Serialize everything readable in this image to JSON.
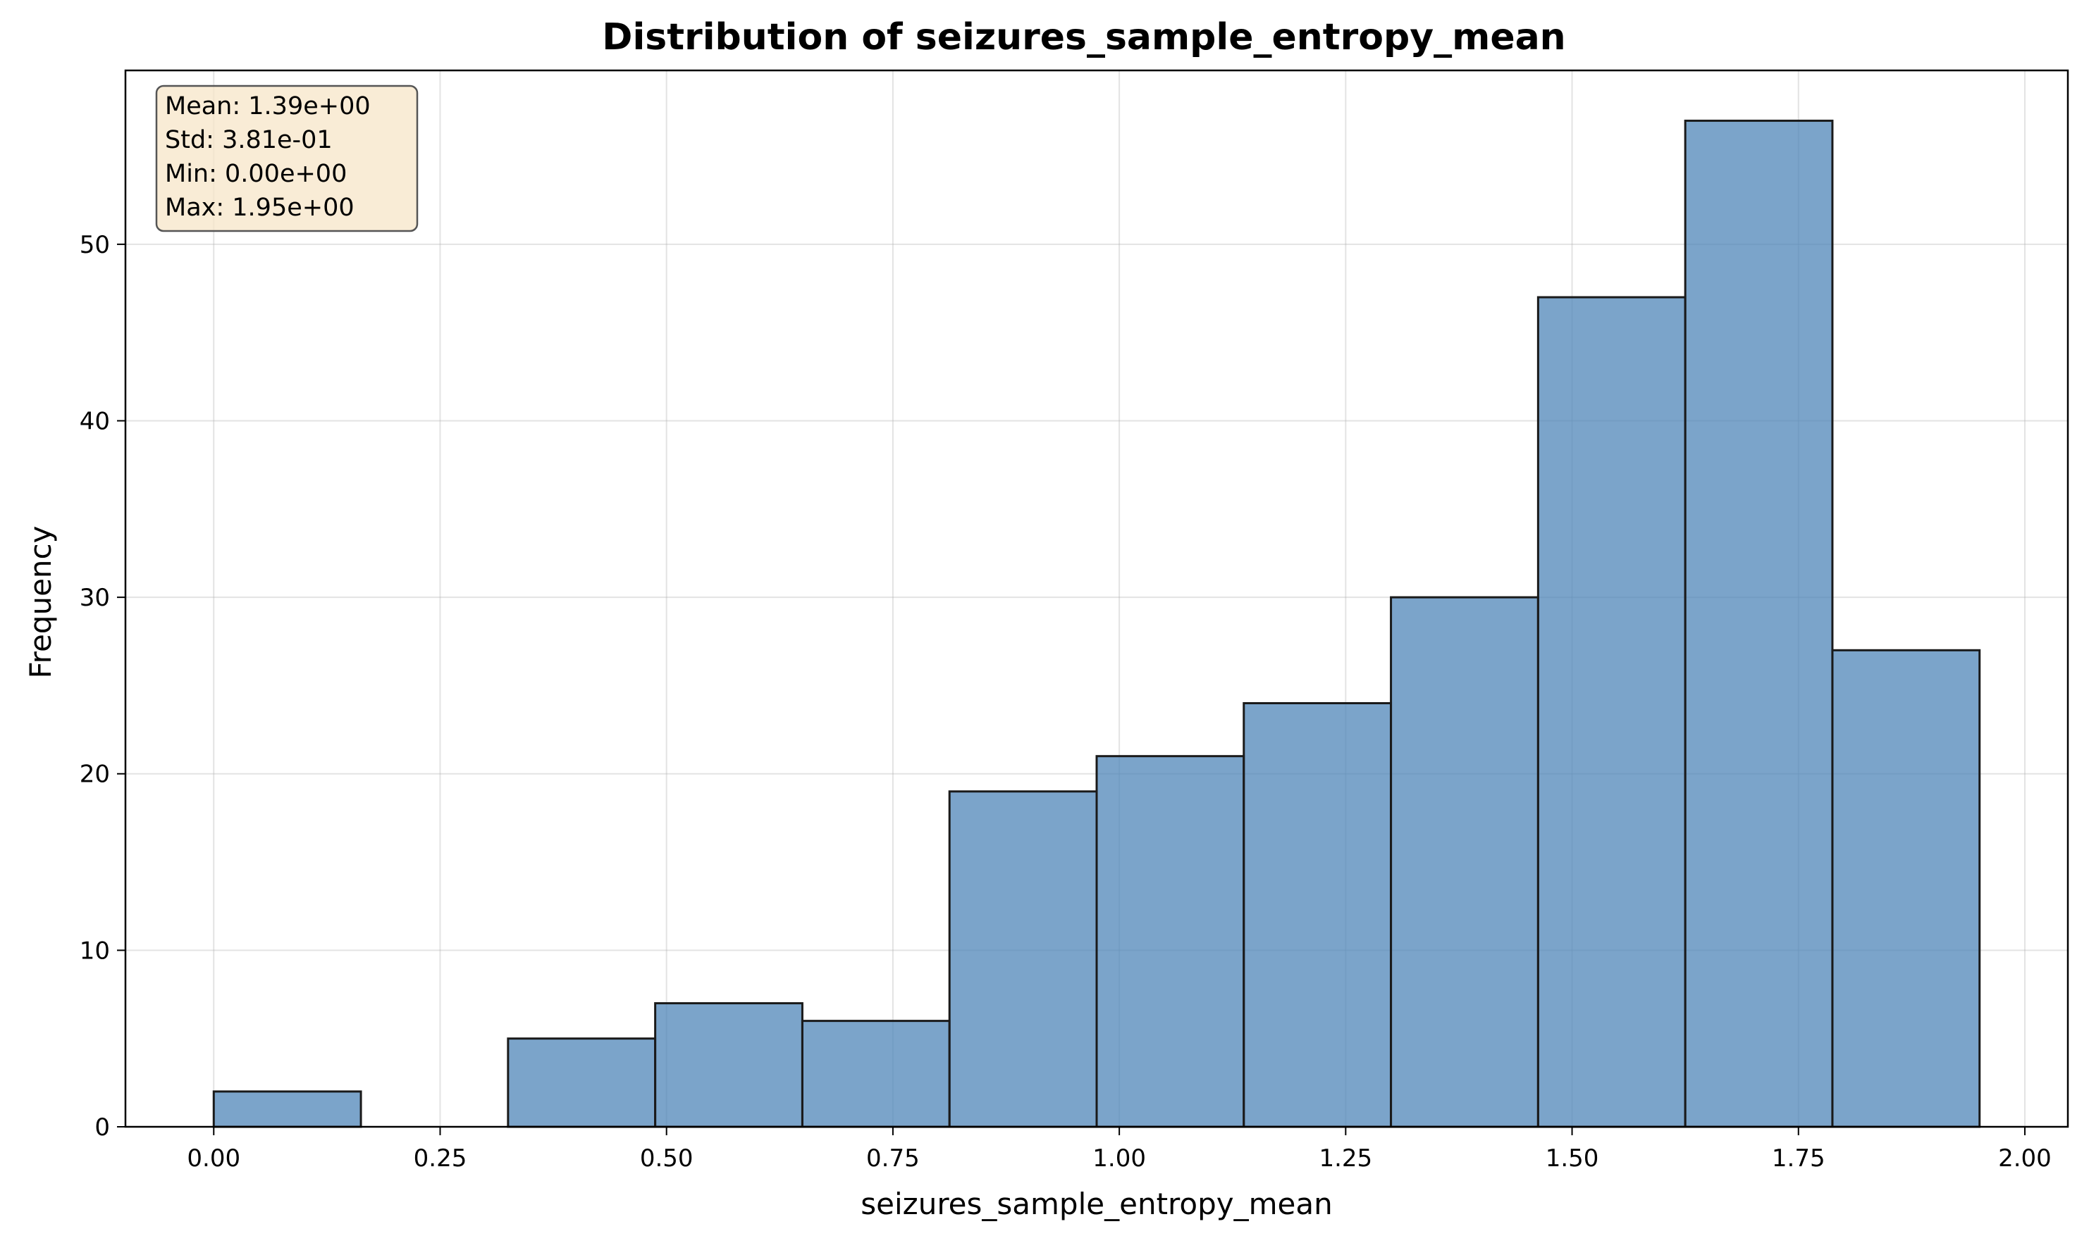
{
  "chart_data": {
    "type": "bar",
    "title": "Distribution of seizures_sample_entropy_mean",
    "xlabel": "seizures_sample_entropy_mean",
    "ylabel": "Frequency",
    "bin_edges": [
      0.0,
      0.1625,
      0.325,
      0.4875,
      0.65,
      0.8125,
      0.975,
      1.1375,
      1.3,
      1.4625,
      1.625,
      1.7875,
      1.95
    ],
    "values": [
      2,
      0,
      5,
      7,
      6,
      19,
      21,
      24,
      30,
      47,
      57,
      27
    ],
    "xlim": [
      -0.0975,
      2.0475
    ],
    "ylim": [
      0,
      59.85
    ],
    "xticks": [
      0.0,
      0.25,
      0.5,
      0.75,
      1.0,
      1.25,
      1.5,
      1.75,
      2.0
    ],
    "xtick_labels": [
      "0.00",
      "0.25",
      "0.50",
      "0.75",
      "1.00",
      "1.25",
      "1.50",
      "1.75",
      "2.00"
    ],
    "yticks": [
      0,
      10,
      20,
      30,
      40,
      50
    ],
    "ytick_labels": [
      "0",
      "10",
      "20",
      "30",
      "40",
      "50"
    ],
    "grid": true,
    "bar_color": "#4f86b8",
    "edge_color": "#1a1a1a",
    "stats_box": {
      "lines": [
        "Mean: 1.39e+00",
        "Std: 3.81e-01",
        "Min: 0.00e+00",
        "Max: 1.95e+00"
      ],
      "placement": "top-left",
      "background": "#f7e6c8"
    }
  }
}
